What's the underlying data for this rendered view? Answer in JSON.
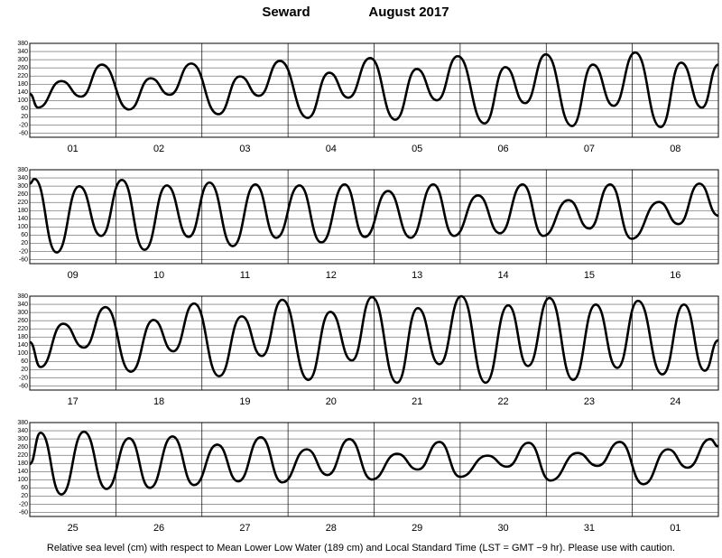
{
  "title": "Seward",
  "subtitle": "August 2017",
  "note": "Relative sea level (cm) with respect to Mean Lower Low Water (189 cm) and Local Standard Time (LST = GMT −9 hr). Please use with caution.",
  "chart_data": [
    {
      "type": "line",
      "color": "#000000",
      "grid": true,
      "xlim": [
        0,
        192
      ],
      "ylim": [
        -80,
        380
      ],
      "yticks": [
        -60,
        -20,
        20,
        60,
        100,
        140,
        180,
        220,
        260,
        300,
        340,
        380
      ],
      "categories": [
        "01",
        "02",
        "03",
        "04",
        "05",
        "06",
        "07",
        "08"
      ],
      "x": [
        0,
        2.3,
        8.8,
        14.3,
        20.1,
        27.7,
        33.7,
        39.0,
        45.0,
        52.6,
        58.6,
        63.9,
        69.7,
        77.5,
        83.5,
        88.8,
        94.9,
        101.9,
        107.9,
        113.5,
        119.3,
        126.8,
        132.6,
        138.1,
        143.9,
        151.2,
        157.0,
        162.8,
        168.8,
        175.9,
        181.6,
        187.4,
        192
      ],
      "values": [
        132,
        65,
        195,
        119,
        276,
        56,
        209,
        128,
        281,
        33,
        218,
        123,
        294,
        15,
        236,
        114,
        308,
        6,
        254,
        101,
        317,
        -12,
        263,
        87,
        326,
        -25,
        276,
        74,
        335,
        -30,
        285,
        65,
        276
      ]
    },
    {
      "type": "line",
      "color": "#000000",
      "grid": true,
      "xlim": [
        0,
        192
      ],
      "ylim": [
        -80,
        380
      ],
      "yticks": [
        -60,
        -20,
        20,
        60,
        100,
        140,
        180,
        220,
        260,
        300,
        340,
        380
      ],
      "categories": [
        "09",
        "10",
        "11",
        "12",
        "13",
        "14",
        "15",
        "16"
      ],
      "x": [
        0,
        1.3,
        7.5,
        13.8,
        19.9,
        25.7,
        32.0,
        38.2,
        44.3,
        50.1,
        56.6,
        62.9,
        68.7,
        75.2,
        81.3,
        87.8,
        93.4,
        99.9,
        106.2,
        112.5,
        118.3,
        125.0,
        131.1,
        137.4,
        143.2,
        150.2,
        156.0,
        161.8,
        167.8,
        175.4,
        180.9,
        186.7,
        192
      ],
      "values": [
        312,
        335,
        -25,
        299,
        56,
        330,
        -12,
        303,
        51,
        317,
        6,
        308,
        47,
        303,
        24,
        308,
        51,
        276,
        47,
        308,
        56,
        254,
        69,
        308,
        56,
        231,
        92,
        308,
        42,
        222,
        114,
        312,
        155
      ]
    },
    {
      "type": "line",
      "color": "#000000",
      "grid": true,
      "xlim": [
        0,
        192
      ],
      "ylim": [
        -80,
        380
      ],
      "yticks": [
        -60,
        -20,
        20,
        60,
        100,
        140,
        180,
        220,
        260,
        300,
        340,
        380
      ],
      "categories": [
        "17",
        "18",
        "19",
        "20",
        "21",
        "22",
        "23",
        "24"
      ],
      "x": [
        0,
        3.0,
        9.3,
        15.1,
        21.1,
        28.2,
        34.5,
        40.0,
        45.8,
        52.8,
        59.1,
        64.7,
        70.4,
        77.7,
        83.8,
        89.8,
        95.4,
        102.4,
        108.2,
        114.2,
        120.3,
        127.1,
        133.4,
        138.9,
        144.9,
        151.5,
        157.8,
        163.8,
        169.6,
        176.4,
        182.4,
        188.2,
        192
      ],
      "values": [
        155,
        33,
        245,
        128,
        326,
        10,
        263,
        110,
        344,
        -12,
        281,
        87,
        362,
        -30,
        303,
        65,
        375,
        -44,
        321,
        47,
        380,
        -44,
        335,
        38,
        371,
        -30,
        339,
        29,
        357,
        -3,
        339,
        15,
        164
      ]
    },
    {
      "type": "line",
      "color": "#000000",
      "grid": true,
      "xlim": [
        0,
        192
      ],
      "ylim": [
        -80,
        380
      ],
      "yticks": [
        -60,
        -20,
        20,
        60,
        100,
        140,
        180,
        220,
        260,
        300,
        340,
        380
      ],
      "categories": [
        "25",
        "26",
        "27",
        "28",
        "29",
        "30",
        "31",
        "01"
      ],
      "x": [
        0,
        3.0,
        8.8,
        15.1,
        21.4,
        27.7,
        33.5,
        39.8,
        45.8,
        52.3,
        58.1,
        64.4,
        70.4,
        77.2,
        83.0,
        89.1,
        95.4,
        102.4,
        108.2,
        114.2,
        120.0,
        127.6,
        133.1,
        139.1,
        145.2,
        152.7,
        158.3,
        164.5,
        171.1,
        177.9,
        183.4,
        189.7,
        192
      ],
      "values": [
        177,
        330,
        28,
        335,
        55,
        303,
        60,
        312,
        74,
        272,
        92,
        308,
        87,
        249,
        123,
        299,
        101,
        227,
        150,
        285,
        114,
        218,
        164,
        281,
        96,
        231,
        168,
        285,
        78,
        249,
        159,
        299,
        263
      ]
    }
  ]
}
